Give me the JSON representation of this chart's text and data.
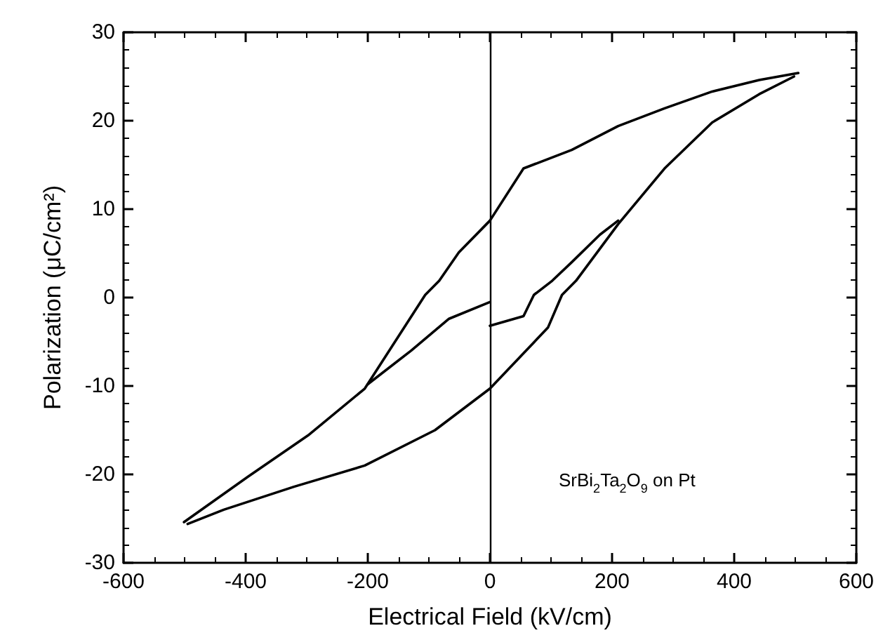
{
  "chart_data": {
    "type": "line",
    "xlabel": "Electrical Field (kV/cm)",
    "ylabel": "Polarization (μC/cm²)",
    "xlim": [
      -600,
      600
    ],
    "xticks": [
      -600,
      -400,
      -200,
      0,
      200,
      400,
      600
    ],
    "ylim": [
      -30,
      30
    ],
    "yticks": [
      -30,
      -20,
      -10,
      0,
      10,
      20,
      30
    ],
    "marker": "none",
    "line_style": "solid",
    "series": [
      {
        "color": "#000000",
        "x": [
          505,
          441,
          364,
          286,
          210,
          134,
          55,
          0,
          -51,
          -83,
          -106,
          -205,
          -298,
          -397,
          -501
        ],
        "values": [
          25.4,
          24.6,
          23.3,
          21.4,
          19.4,
          16.7,
          14.6,
          8.7,
          5.1,
          1.9,
          0.3,
          -10.3,
          -15.6,
          -20.3,
          -25.4
        ]
      },
      {
        "color": "#000000",
        "x": [
          -495,
          -436,
          -321,
          -205,
          -90,
          0,
          95,
          118,
          141,
          210,
          286,
          364,
          441,
          498
        ],
        "values": [
          -25.6,
          -24,
          -21.4,
          -19,
          -15,
          -10.3,
          -3.4,
          0.3,
          1.9,
          8.3,
          14.6,
          19.8,
          23,
          25
        ]
      },
      {
        "color": "#000000",
        "x": [
          -200,
          -129,
          -67,
          0
        ],
        "values": [
          -9.8,
          -6,
          -2.4,
          -0.5
        ]
      },
      {
        "color": "#000000",
        "x": [
          0,
          55,
          72,
          102,
          134,
          180,
          210
        ],
        "values": [
          -3.2,
          -2.1,
          0.3,
          1.9,
          4,
          7.1,
          8.7
        ]
      }
    ],
    "ref_lines": [
      {
        "axis": "x",
        "value": 0,
        "color": "#000000"
      }
    ],
    "annotations": [
      "SrBi$_{2}$Ta$_{2}$O$_{9}$ on Pt"
    ]
  }
}
